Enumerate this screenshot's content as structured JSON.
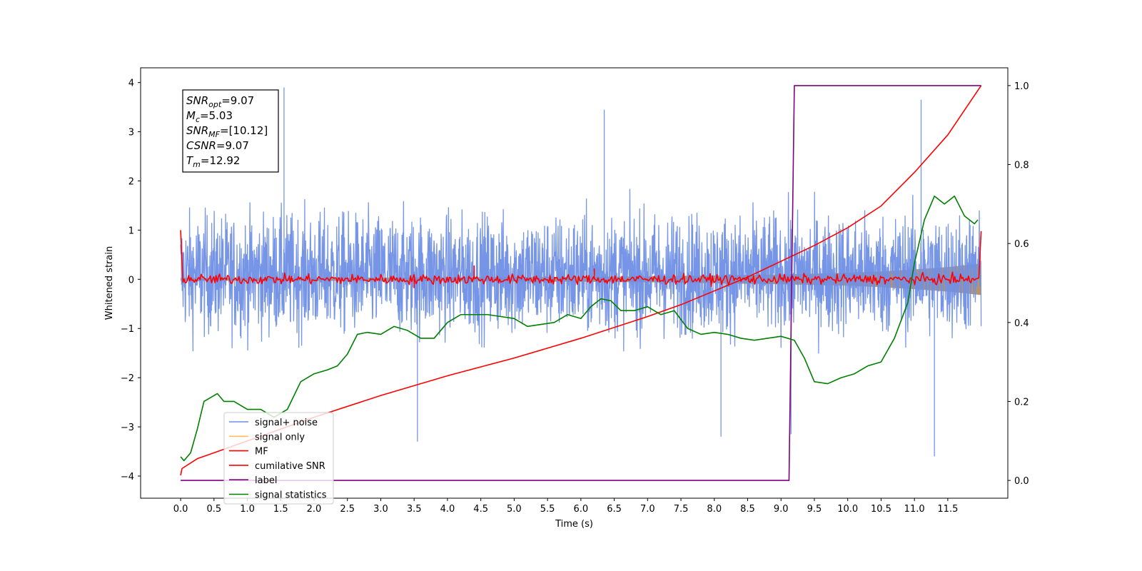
{
  "chart_data": {
    "type": "line",
    "xlabel": "Time (s)",
    "ylabel": "Whitened strain",
    "xlim": [
      -0.6,
      12.4
    ],
    "ylim": [
      -4.45,
      4.3
    ],
    "ylim_right": [
      -0.045,
      1.045
    ],
    "x_ticks": [
      0.0,
      0.5,
      1.0,
      1.5,
      2.0,
      2.5,
      3.0,
      3.5,
      4.0,
      4.5,
      5.0,
      5.5,
      6.0,
      6.5,
      7.0,
      7.5,
      8.0,
      8.5,
      9.0,
      9.5,
      10.0,
      10.5,
      11.0,
      11.5
    ],
    "x_tick_labels": [
      "0.0",
      "0.5",
      "1.0",
      "1.5",
      "2.0",
      "2.5",
      "3.0",
      "3.5",
      "4.0",
      "4.5",
      "5.0",
      "5.5",
      "6.0",
      "6.5",
      "7.0",
      "7.5",
      "8.0",
      "8.5",
      "9.0",
      "9.5",
      "10.0",
      "10.5",
      "11.0",
      "11.5"
    ],
    "y_ticks_left": [
      4,
      3,
      2,
      1,
      0,
      -1,
      -2,
      -3,
      -4
    ],
    "y_tick_labels_left": [
      "4",
      "3",
      "2",
      "1",
      "0",
      "−1",
      "−2",
      "−3",
      "−4"
    ],
    "y_ticks_right": [
      1.0,
      0.8,
      0.6,
      0.4,
      0.2,
      0.0
    ],
    "y_tick_labels_right": [
      "1.0",
      "0.8",
      "0.6",
      "0.4",
      "0.2",
      "0.0"
    ],
    "grid": false,
    "legend_placement": "lower-left",
    "series": [
      {
        "name": "signal+ noise",
        "color": "#6f8fe6",
        "axis": "left",
        "style": "dense-noise",
        "x_range": [
          0.0,
          12.0
        ],
        "center": 0.0,
        "typical_range": [
          -1.8,
          2.1
        ],
        "peaks": [
          [
            1.55,
            3.9
          ],
          [
            6.35,
            3.45
          ],
          [
            11.1,
            3.65
          ],
          [
            9.15,
            -3.15
          ],
          [
            11.3,
            -3.6
          ],
          [
            3.55,
            -3.3
          ],
          [
            8.1,
            -3.2
          ]
        ]
      },
      {
        "name": "signal only",
        "color": "#ffbf5a",
        "fill_color": "#b8946c",
        "axis": "left",
        "style": "envelope",
        "x": [
          0.0,
          2.0,
          4.0,
          6.0,
          7.0,
          8.0,
          9.0,
          10.0,
          10.5,
          11.0,
          11.5,
          12.0
        ],
        "half_width": [
          0.03,
          0.03,
          0.04,
          0.05,
          0.06,
          0.08,
          0.1,
          0.13,
          0.16,
          0.2,
          0.25,
          0.32
        ]
      },
      {
        "name": "MF",
        "color": "#ff0000",
        "axis": "left",
        "style": "noisy",
        "x_range": [
          0.0,
          12.0
        ],
        "start": 1.0,
        "end": 0.98,
        "noise_amplitude": 0.09,
        "peaks": [
          [
            4.4,
            0.28
          ],
          [
            6.2,
            0.22
          ],
          [
            3.5,
            -0.18
          ]
        ]
      },
      {
        "name": "cumilative SNR",
        "color": "#ff0000",
        "axis": "right",
        "x": [
          0.0,
          0.02,
          0.25,
          0.5,
          1.0,
          1.5,
          2.0,
          3.0,
          4.0,
          5.0,
          6.0,
          7.0,
          7.5,
          8.0,
          8.5,
          9.0,
          9.5,
          10.0,
          10.5,
          11.0,
          11.5,
          12.0
        ],
        "y": [
          0.013,
          0.03,
          0.055,
          0.07,
          0.1,
          0.13,
          0.16,
          0.215,
          0.265,
          0.31,
          0.36,
          0.415,
          0.445,
          0.48,
          0.515,
          0.555,
          0.595,
          0.64,
          0.695,
          0.78,
          0.875,
          1.0
        ]
      },
      {
        "name": "label",
        "color": "#800080",
        "axis": "right",
        "x": [
          0.0,
          9.12,
          9.2,
          12.0
        ],
        "y": [
          0.0,
          0.0,
          1.0,
          1.0
        ]
      },
      {
        "name": "signal statistics",
        "color": "#008000",
        "axis": "right",
        "x": [
          0.0,
          0.05,
          0.15,
          0.25,
          0.35,
          0.45,
          0.55,
          0.65,
          0.8,
          1.0,
          1.2,
          1.4,
          1.6,
          1.8,
          2.0,
          2.2,
          2.35,
          2.5,
          2.65,
          2.8,
          3.0,
          3.2,
          3.4,
          3.6,
          3.8,
          4.0,
          4.2,
          4.4,
          4.6,
          4.8,
          5.0,
          5.2,
          5.4,
          5.6,
          5.8,
          6.0,
          6.15,
          6.3,
          6.45,
          6.6,
          6.8,
          7.0,
          7.2,
          7.4,
          7.6,
          7.8,
          8.0,
          8.2,
          8.4,
          8.6,
          8.8,
          9.0,
          9.2,
          9.35,
          9.5,
          9.7,
          9.9,
          10.1,
          10.3,
          10.5,
          10.7,
          10.9,
          11.0,
          11.15,
          11.3,
          11.45,
          11.6,
          11.75,
          11.9,
          11.95
        ],
        "y": [
          0.06,
          0.05,
          0.07,
          0.13,
          0.2,
          0.21,
          0.22,
          0.2,
          0.2,
          0.18,
          0.18,
          0.16,
          0.18,
          0.25,
          0.27,
          0.28,
          0.29,
          0.32,
          0.37,
          0.375,
          0.37,
          0.39,
          0.38,
          0.36,
          0.36,
          0.4,
          0.42,
          0.42,
          0.42,
          0.415,
          0.41,
          0.39,
          0.395,
          0.4,
          0.42,
          0.41,
          0.44,
          0.46,
          0.455,
          0.43,
          0.43,
          0.44,
          0.42,
          0.43,
          0.385,
          0.37,
          0.375,
          0.37,
          0.36,
          0.355,
          0.36,
          0.365,
          0.355,
          0.31,
          0.25,
          0.245,
          0.26,
          0.27,
          0.29,
          0.3,
          0.36,
          0.45,
          0.55,
          0.66,
          0.72,
          0.7,
          0.72,
          0.67,
          0.65,
          0.66
        ]
      }
    ],
    "annotation": {
      "lines": [
        {
          "base": "SNR",
          "sub": "opt",
          "value": "=9.07"
        },
        {
          "base": "M",
          "sub": "c",
          "value": "=5.03"
        },
        {
          "base": "SNR",
          "sub": "MF",
          "value": "=[10.12]"
        },
        {
          "base": "CSNR",
          "sub": "",
          "value": "=9.07"
        },
        {
          "base": "T",
          "sub": "m",
          "value": "=12.92"
        }
      ]
    }
  }
}
